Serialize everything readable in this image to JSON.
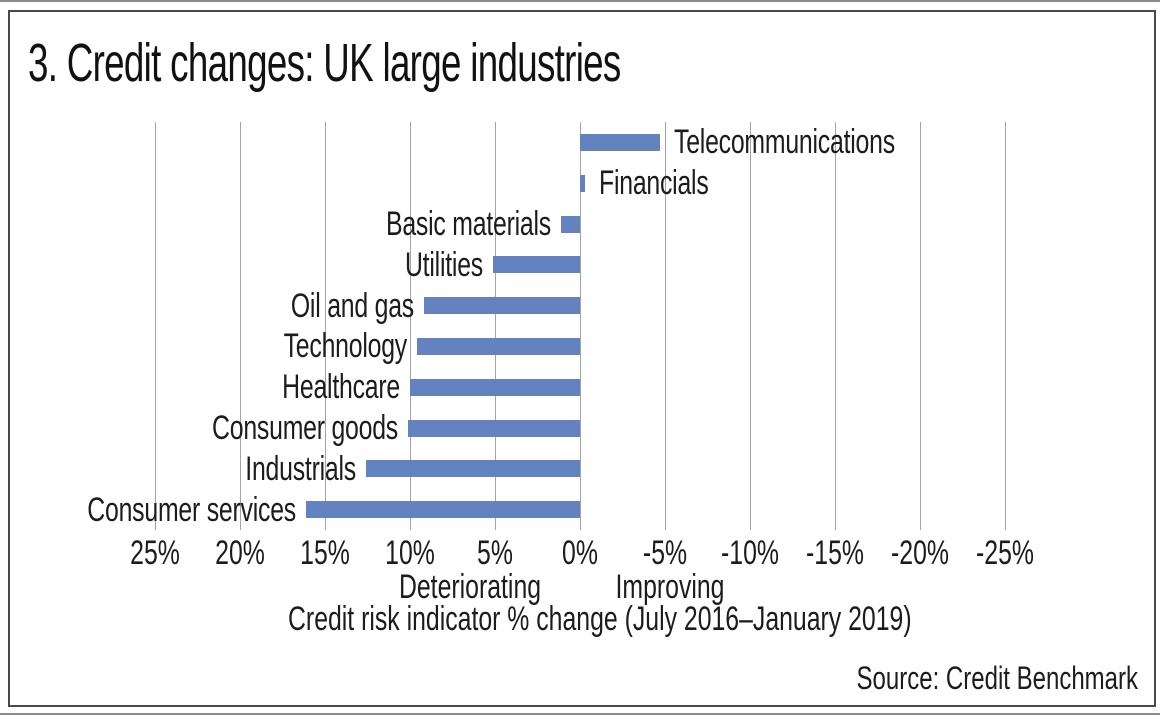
{
  "title": "3. Credit changes: UK large industries",
  "chart_data": {
    "type": "bar",
    "orientation": "horizontal",
    "title": "3. Credit changes: UK large industries",
    "categories": [
      "Telecommunications",
      "Financials",
      "Basic materials",
      "Utilities",
      "Oil and gas",
      "Technology",
      "Healthcare",
      "Consumer goods",
      "Industrials",
      "Consumer services"
    ],
    "values": [
      -4.7,
      -0.3,
      1.1,
      5.1,
      9.2,
      9.6,
      10.0,
      10.1,
      12.6,
      16.1
    ],
    "unit": "%",
    "value_note": "positive = deteriorating (plotted left of zero), negative = improving (plotted right of zero)",
    "x_axis": {
      "reversed": true,
      "range": [
        25,
        -25
      ],
      "tick_values": [
        25,
        20,
        15,
        10,
        5,
        0,
        -5,
        -10,
        -15,
        -20,
        -25
      ],
      "tick_labels": [
        "25%",
        "20%",
        "15%",
        "10%",
        "5%",
        "0%",
        "-5%",
        "-10%",
        "-15%",
        "-20%",
        "-25%"
      ]
    },
    "direction_labels": {
      "left": "Deteriorating",
      "right": "Improving"
    },
    "xlabel": "Credit risk indicator % change (July 2016–January 2019)",
    "source": "Source: Credit Benchmark",
    "grid": "vertical-only",
    "legend": "none",
    "colors": {
      "bar": "#6382bf",
      "gridline": "#a3a3a3",
      "frame_border": "#4a4a4a",
      "text": "#1c1c1c"
    }
  }
}
